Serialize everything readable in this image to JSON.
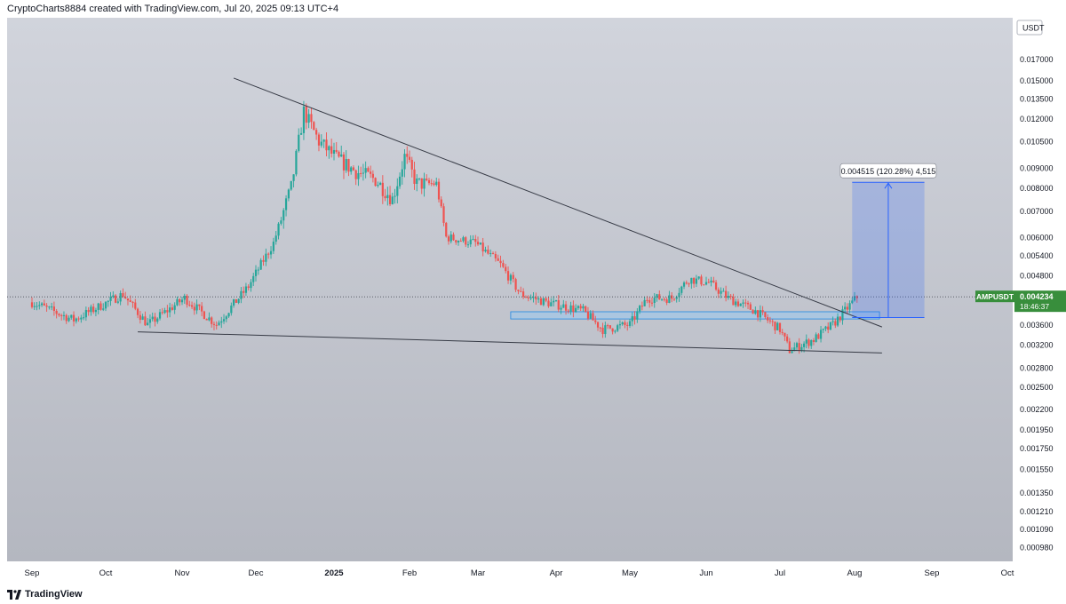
{
  "header": {
    "attribution": "CryptoCharts8884 created with TradingView.com, Jul 20, 2025 09:13 UTC+4"
  },
  "footer": {
    "brand": "TradingView"
  },
  "colors": {
    "up": "#26a69a",
    "down": "#ef5350",
    "background_top": "#d1d4dc",
    "background_bottom": "#b2b5be",
    "trendline": "#363a45",
    "projection": "#2962ff",
    "zone": "#90caf9",
    "price_label": "#388e3c"
  },
  "chart_data": {
    "type": "candlestick",
    "scale": "log",
    "currency": "USDT",
    "symbol": "AMPUSDT",
    "last_price": "0.004234",
    "countdown": "18:46:37",
    "y_ticks": [
      "0.017000",
      "0.015000",
      "0.013500",
      "0.012000",
      "0.010500",
      "0.009000",
      "0.008000",
      "0.007000",
      "0.006000",
      "0.005400",
      "0.004800",
      "0.003600",
      "0.003200",
      "0.002800",
      "0.002500",
      "0.002200",
      "0.001950",
      "0.001750",
      "0.001550",
      "0.001350",
      "0.001210",
      "0.001090",
      "0.000980"
    ],
    "y_tick_values": [
      0.017,
      0.015,
      0.0135,
      0.012,
      0.0105,
      0.009,
      0.008,
      0.007,
      0.006,
      0.0054,
      0.0048,
      0.0036,
      0.0032,
      0.0028,
      0.0025,
      0.0022,
      0.00195,
      0.00175,
      0.00155,
      0.00135,
      0.00121,
      0.00109,
      0.00098
    ],
    "x_ticks": [
      "Sep",
      "Oct",
      "Nov",
      "Dec",
      "2025",
      "Feb",
      "Mar",
      "Apr",
      "May",
      "Jun",
      "Jul",
      "Aug",
      "Sep",
      "Oct"
    ],
    "x_tick_days": [
      0,
      30,
      61,
      91,
      122,
      153,
      181,
      212,
      242,
      273,
      303,
      334,
      365,
      395
    ],
    "start_date": "2024-08-19",
    "last_candle_date": "2025-07-20",
    "anchors": [
      {
        "date": "2024-08-19",
        "price": 0.0041
      },
      {
        "date": "2024-09-05",
        "price": 0.0037
      },
      {
        "date": "2024-09-25",
        "price": 0.0043
      },
      {
        "date": "2024-10-05",
        "price": 0.0036
      },
      {
        "date": "2024-10-20",
        "price": 0.0042
      },
      {
        "date": "2024-11-02",
        "price": 0.0036
      },
      {
        "date": "2024-11-15",
        "price": 0.0045
      },
      {
        "date": "2024-11-25",
        "price": 0.0058
      },
      {
        "date": "2024-12-02",
        "price": 0.008
      },
      {
        "date": "2024-12-07",
        "price": 0.0125
      },
      {
        "date": "2024-12-13",
        "price": 0.0105
      },
      {
        "date": "2024-12-20",
        "price": 0.0095
      },
      {
        "date": "2024-12-28",
        "price": 0.0088
      },
      {
        "date": "2025-01-05",
        "price": 0.0084
      },
      {
        "date": "2025-01-12",
        "price": 0.0075
      },
      {
        "date": "2025-01-17",
        "price": 0.0096
      },
      {
        "date": "2025-01-22",
        "price": 0.0082
      },
      {
        "date": "2025-01-30",
        "price": 0.0082
      },
      {
        "date": "2025-02-03",
        "price": 0.006
      },
      {
        "date": "2025-02-15",
        "price": 0.0058
      },
      {
        "date": "2025-02-25",
        "price": 0.0051
      },
      {
        "date": "2025-03-05",
        "price": 0.0043
      },
      {
        "date": "2025-03-15",
        "price": 0.0041
      },
      {
        "date": "2025-03-30",
        "price": 0.0039
      },
      {
        "date": "2025-04-07",
        "price": 0.0035
      },
      {
        "date": "2025-04-18",
        "price": 0.0036
      },
      {
        "date": "2025-04-25",
        "price": 0.0042
      },
      {
        "date": "2025-05-05",
        "price": 0.0042
      },
      {
        "date": "2025-05-12",
        "price": 0.0047
      },
      {
        "date": "2025-05-20",
        "price": 0.0046
      },
      {
        "date": "2025-05-28",
        "price": 0.0042
      },
      {
        "date": "2025-06-08",
        "price": 0.0039
      },
      {
        "date": "2025-06-18",
        "price": 0.0035
      },
      {
        "date": "2025-06-22",
        "price": 0.0031
      },
      {
        "date": "2025-07-02",
        "price": 0.0033
      },
      {
        "date": "2025-07-10",
        "price": 0.0036
      },
      {
        "date": "2025-07-20",
        "price": 0.00423
      }
    ],
    "resistance_line": {
      "from": {
        "date": "2024-11-09",
        "price": 0.0152
      },
      "to": {
        "date": "2025-07-30",
        "price": 0.00355
      }
    },
    "support_line": {
      "from": {
        "date": "2024-10-01",
        "price": 0.00345
      },
      "to": {
        "date": "2025-07-30",
        "price": 0.00305
      }
    },
    "zone": {
      "from": "2025-03-01",
      "to": "2025-07-29",
      "top": 0.00388,
      "bottom": 0.00372
    },
    "projection": {
      "from": "2025-07-18",
      "to": "2025-08-16",
      "base": 0.00375,
      "target": 0.00827,
      "label": "0.004515 (120.28%) 4,515"
    }
  }
}
